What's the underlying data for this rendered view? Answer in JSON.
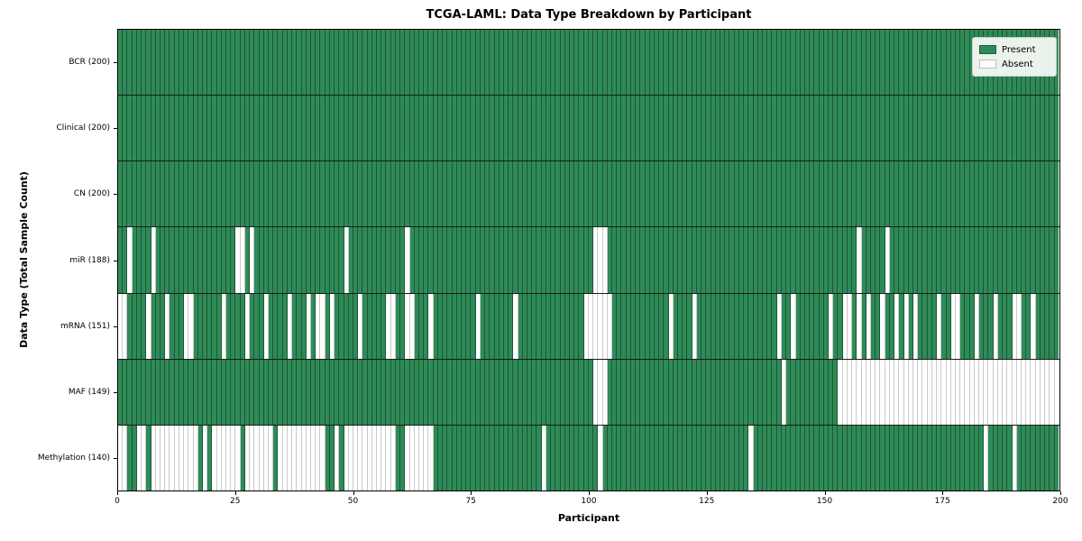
{
  "chart_data": {
    "type": "heatmap",
    "title": "TCGA-LAML: Data Type Breakdown by Participant",
    "xlabel": "Participant",
    "ylabel": "Data Type (Total Sample Count)",
    "x_ticks": [
      0,
      25,
      50,
      75,
      100,
      125,
      150,
      175,
      200
    ],
    "x_range": [
      0,
      200
    ],
    "n_participants": 200,
    "grid": "cell-borders",
    "legend": {
      "present_label": "Present",
      "absent_label": "Absent",
      "position": "upper right"
    },
    "colors": {
      "present": "#2e8b57",
      "absent": "#ffffff"
    },
    "rows": [
      {
        "label": "BCR (200)",
        "data_type": "BCR",
        "present_count": 200,
        "absent_participants": []
      },
      {
        "label": "Clinical (200)",
        "data_type": "Clinical",
        "present_count": 200,
        "absent_participants": []
      },
      {
        "label": "CN (200)",
        "data_type": "CN",
        "present_count": 200,
        "absent_participants": []
      },
      {
        "label": "miR (188)",
        "data_type": "miR",
        "present_count": 188,
        "absent_participants": [
          2,
          7,
          25,
          26,
          28,
          48,
          61,
          101,
          102,
          103,
          157,
          163
        ]
      },
      {
        "label": "mRNA (151)",
        "data_type": "mRNA",
        "present_count": 151,
        "absent_participants": [
          0,
          1,
          6,
          10,
          14,
          15,
          22,
          27,
          31,
          36,
          40,
          42,
          43,
          45,
          51,
          57,
          58,
          61,
          62,
          66,
          76,
          84,
          99,
          100,
          101,
          102,
          103,
          104,
          117,
          122,
          140,
          143,
          151,
          154,
          155,
          157,
          159,
          162,
          165,
          167,
          169,
          174,
          177,
          178,
          182,
          186,
          190,
          191,
          194
        ]
      },
      {
        "label": "MAF (149)",
        "data_type": "MAF",
        "present_count": 149,
        "absent_participants": [
          101,
          102,
          103,
          141,
          153,
          154,
          155,
          156,
          157,
          158,
          159,
          160,
          161,
          162,
          163,
          164,
          165,
          166,
          167,
          168,
          169,
          170,
          171,
          172,
          173,
          174,
          175,
          176,
          177,
          178,
          179,
          180,
          181,
          182,
          183,
          184,
          185,
          186,
          187,
          188,
          189,
          190,
          191,
          192,
          193,
          194,
          195,
          196,
          197,
          198,
          199
        ]
      },
      {
        "label": "Methylation (140)",
        "data_type": "Methylation",
        "present_count": 140,
        "absent_participants": [
          0,
          1,
          4,
          5,
          7,
          8,
          9,
          10,
          11,
          12,
          13,
          14,
          15,
          16,
          18,
          20,
          21,
          22,
          23,
          24,
          25,
          27,
          28,
          29,
          30,
          31,
          32,
          34,
          35,
          36,
          37,
          38,
          39,
          40,
          41,
          42,
          43,
          46,
          48,
          49,
          50,
          51,
          52,
          53,
          54,
          55,
          56,
          57,
          58,
          61,
          62,
          63,
          64,
          65,
          66,
          90,
          102,
          134,
          184,
          190
        ]
      }
    ]
  }
}
